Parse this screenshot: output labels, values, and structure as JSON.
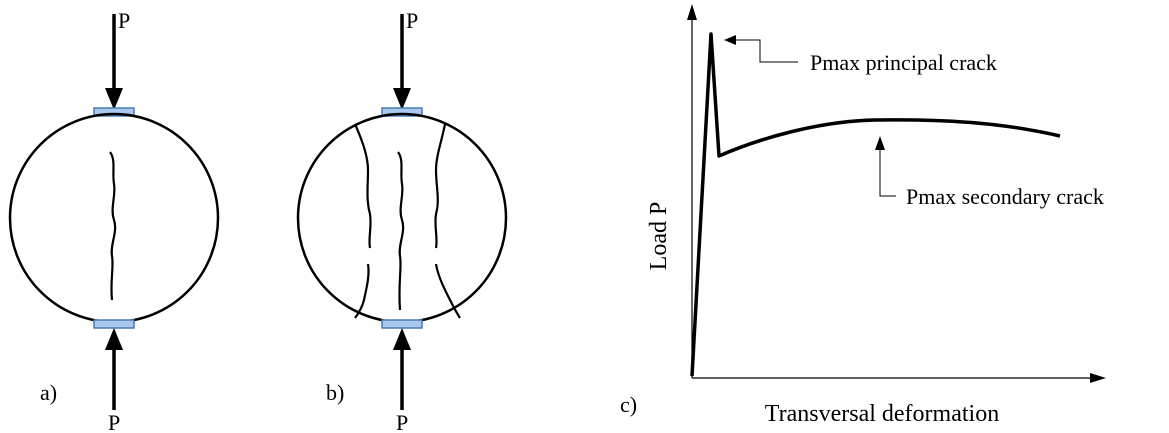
{
  "panel_a": {
    "label": "a)",
    "load_top": "P",
    "load_bottom": "P"
  },
  "panel_b": {
    "label": "b)",
    "load_top": "P",
    "load_bottom": "P"
  },
  "panel_c": {
    "label": "c)",
    "xlabel": "Transversal deformation",
    "ylabel": "Load P",
    "annotation_principal": "Pmax principal crack",
    "annotation_secondary": "Pmax secondary crack"
  },
  "colors": {
    "ink": "#000000",
    "platen_fill": "#a9c8ec",
    "platen_stroke": "#4a78b4"
  }
}
